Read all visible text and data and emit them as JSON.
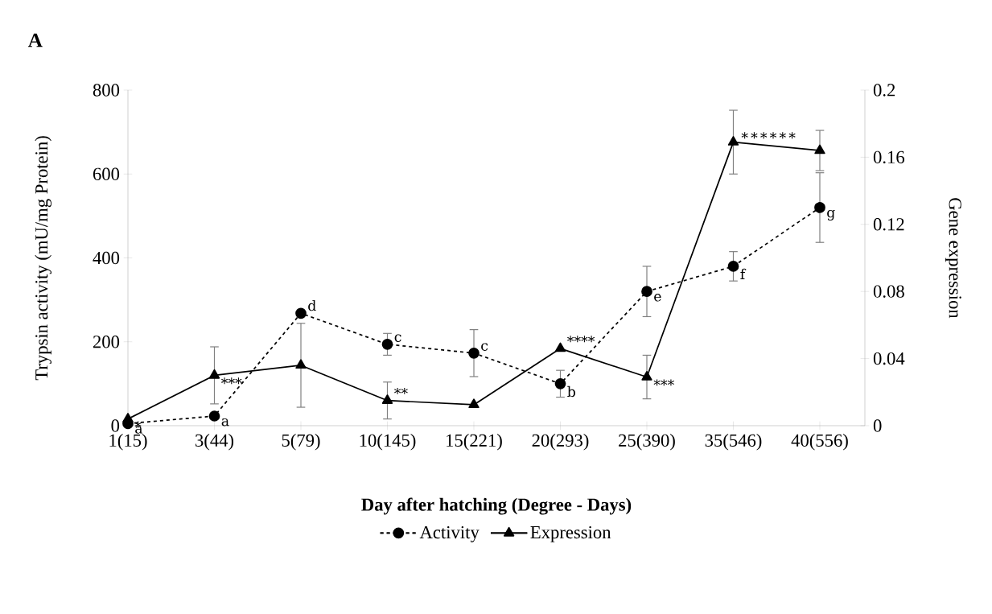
{
  "chart_data": {
    "type": "line",
    "title": "A",
    "xlabel": "Day after hatching (Degree - Days)",
    "ylabel": "Trypsin activity (mU/mg Protein)",
    "y2label": "Gene expression",
    "categories": [
      "1(15)",
      "3(44)",
      "5(79)",
      "10(145)",
      "15(221)",
      "20(293)",
      "25(390)",
      "35(546)",
      "40(556)"
    ],
    "ylim": [
      0,
      800
    ],
    "yticks": [
      0,
      200,
      400,
      600,
      800
    ],
    "y2lim": [
      0,
      0.2
    ],
    "y2ticks": [
      0,
      0.04,
      0.08,
      0.12,
      0.16,
      0.2
    ],
    "legend": "bottom",
    "series": [
      {
        "name": "Activity",
        "color": "#000000",
        "marker": "circle",
        "line_style": "dashed",
        "values": [
          5,
          23,
          268,
          194,
          173,
          100,
          320,
          380,
          520
        ],
        "errors": [
          null,
          null,
          null,
          26,
          56,
          32,
          60,
          35,
          83
        ],
        "value_labels": [
          "a",
          "a",
          "d",
          "c",
          "c",
          "b",
          "e",
          "f",
          "g"
        ]
      },
      {
        "name": "Expression",
        "color": "#000000",
        "marker": "triangle",
        "line_style": "solid",
        "axis": "y2",
        "values": [
          0.004,
          0.03,
          0.036,
          0.015,
          0.0125,
          0.046,
          0.029,
          0.169,
          0.164
        ],
        "errors": [
          null,
          0.017,
          0.025,
          0.011,
          null,
          null,
          0.013,
          0.019,
          0.012
        ],
        "value_labels": [
          "*",
          "***",
          null,
          "**",
          null,
          "****",
          "***",
          "∗∗∗∗∗∗",
          null
        ]
      }
    ]
  }
}
